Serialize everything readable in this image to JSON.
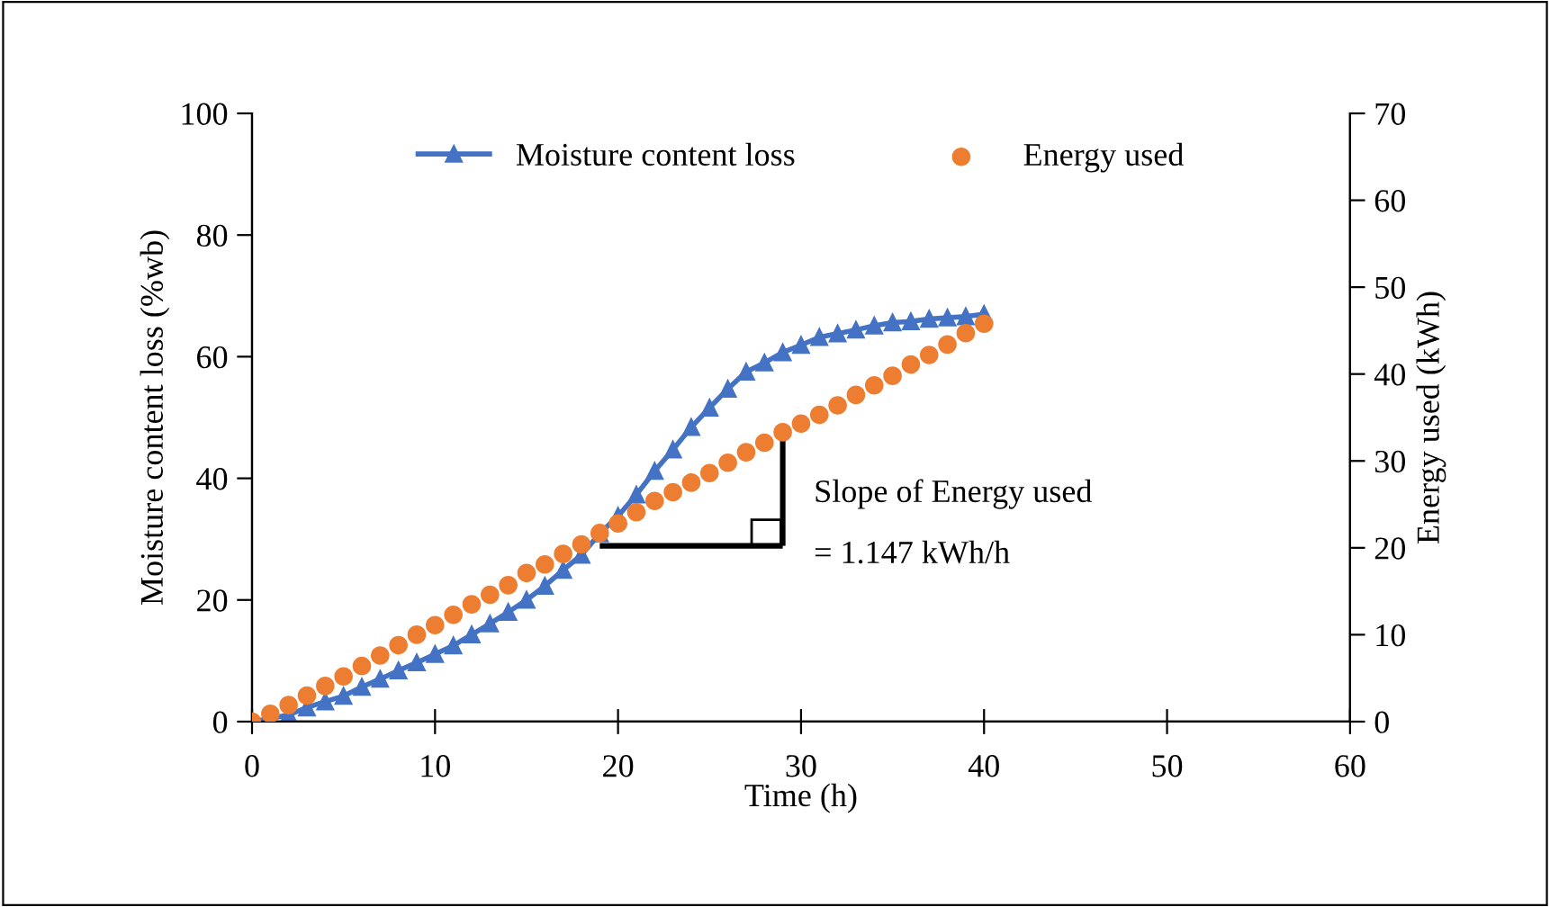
{
  "chart_data": {
    "type": "line",
    "xlabel": "Time (h)",
    "ylabel": "Moisture content loss (%wb)",
    "y2label": "Energy used (kWh)",
    "x": [
      0,
      1,
      2,
      3,
      4,
      5,
      6,
      7,
      8,
      9,
      10,
      11,
      12,
      13,
      14,
      15,
      16,
      17,
      18,
      19,
      20,
      21,
      22,
      23,
      24,
      25,
      26,
      27,
      28,
      29,
      30,
      31,
      32,
      33,
      34,
      35,
      36,
      37,
      38,
      39,
      40
    ],
    "series": [
      {
        "name": "Moisture content loss",
        "marker": "triangle",
        "color": "#4472c4",
        "values": [
          0,
          0.5,
          1.1,
          2.3,
          3.3,
          4.2,
          5.7,
          7.0,
          8.4,
          9.7,
          11.1,
          12.5,
          14.3,
          16.1,
          18.0,
          20.0,
          22.3,
          24.9,
          27.4,
          30.9,
          33.8,
          37.3,
          41.2,
          44.7,
          48.4,
          51.6,
          54.7,
          57.5,
          59.0,
          60.7,
          61.9,
          63.2,
          63.8,
          64.4,
          65.1,
          65.6,
          65.8,
          66.2,
          66.4,
          66.6,
          67.0
        ]
      },
      {
        "name": "Energy used",
        "type": "scatter",
        "marker": "circle",
        "axis": "y2",
        "color": "#ed7d31",
        "values": [
          0,
          0.9,
          1.9,
          3.0,
          4.1,
          5.2,
          6.4,
          7.6,
          8.8,
          10.0,
          11.1,
          12.3,
          13.5,
          14.6,
          15.7,
          17.1,
          18.1,
          19.3,
          20.4,
          21.7,
          22.8,
          24.1,
          25.4,
          26.4,
          27.5,
          28.6,
          29.8,
          31.0,
          32.1,
          33.3,
          34.3,
          35.3,
          36.4,
          37.6,
          38.7,
          39.8,
          41.1,
          42.2,
          43.4,
          44.7,
          45.8
        ]
      }
    ],
    "xlim": [
      0,
      60
    ],
    "xticks": [
      0,
      10,
      20,
      30,
      40,
      50,
      60
    ],
    "ylim": [
      0,
      100
    ],
    "yticks": [
      0,
      20,
      40,
      60,
      80,
      100
    ],
    "y2lim": [
      0,
      70
    ],
    "y2ticks": [
      0,
      10,
      20,
      30,
      40,
      50,
      60,
      70
    ],
    "annotations": [
      {
        "text": "Slope of Energy used\n= 1.147 kWh/h",
        "x": 29,
        "y": 47.6
      }
    ],
    "grid": false,
    "legend": "top"
  }
}
